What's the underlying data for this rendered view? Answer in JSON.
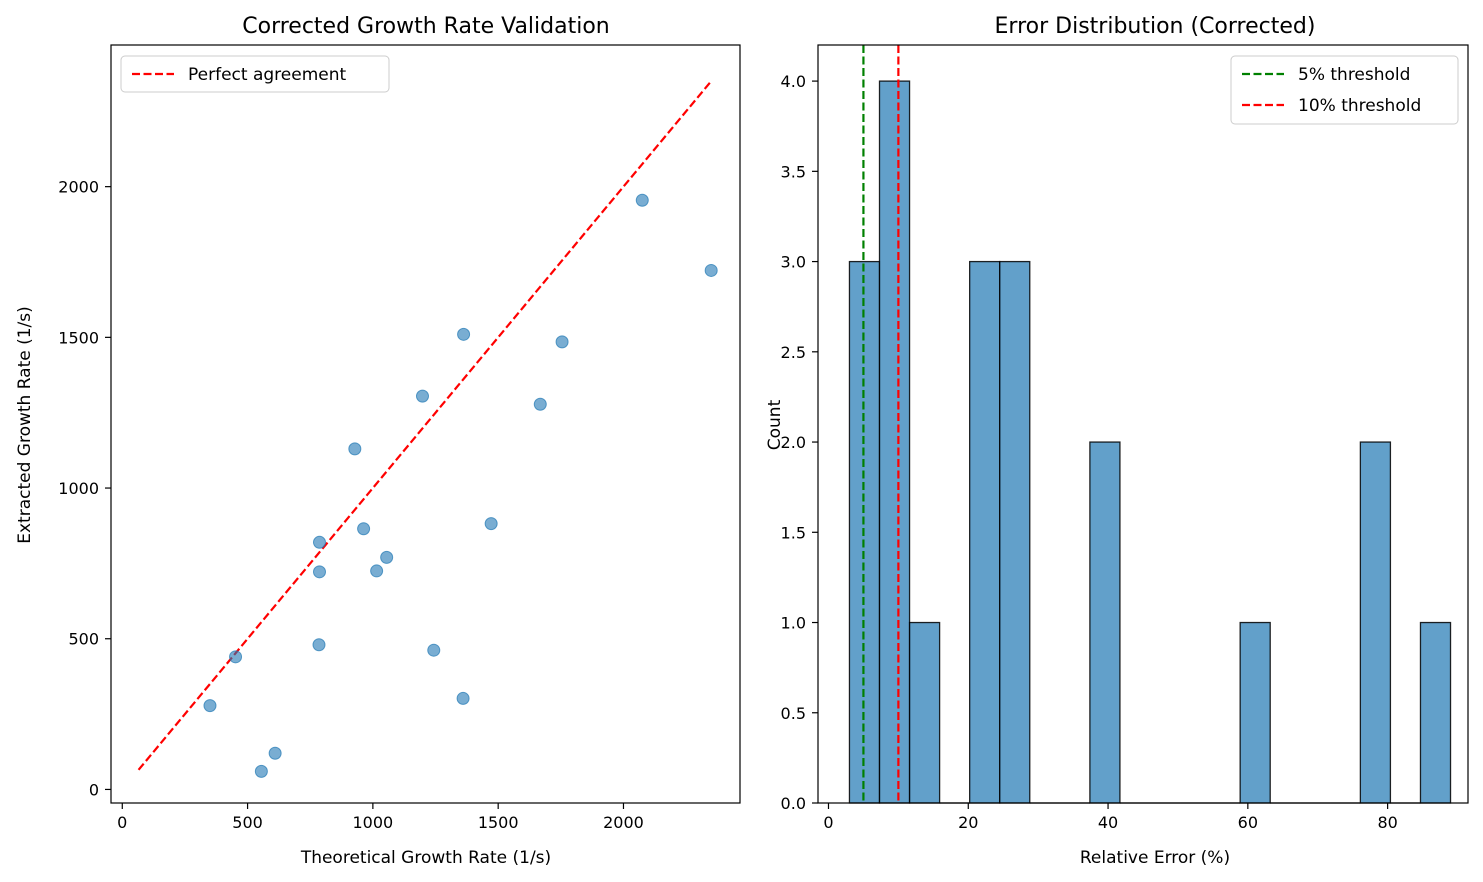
{
  "chart_data": [
    {
      "type": "scatter",
      "title": "Corrected Growth Rate Validation",
      "xlabel": "Theoretical Growth Rate (1/s)",
      "ylabel": "Extracted Growth Rate (1/s)",
      "xlim": [
        -45,
        2465
      ],
      "ylim": [
        -45,
        2470
      ],
      "xticks": [
        0,
        500,
        1000,
        1500,
        2000
      ],
      "yticks": [
        0,
        500,
        1000,
        1500,
        2000
      ],
      "grid": false,
      "legend_position": "top-left",
      "series": [
        {
          "name": "Perfect agreement",
          "kind": "line",
          "style": "dashed",
          "color": "#ff0000",
          "x": [
            65,
            2350
          ],
          "y": [
            65,
            2350
          ]
        },
        {
          "kind": "points",
          "color": "#1f77b4",
          "x": [
            350,
            452,
            555,
            610,
            785,
            787,
            787,
            928,
            963,
            1015,
            1055,
            1198,
            1243,
            1360,
            1362,
            1472,
            1668,
            1755,
            2075,
            2350
          ],
          "y": [
            278,
            440,
            60,
            120,
            480,
            722,
            820,
            1130,
            865,
            725,
            770,
            1305,
            462,
            302,
            1510,
            882,
            1278,
            1485,
            1955,
            1722
          ]
        }
      ]
    },
    {
      "type": "bar",
      "title": "Error Distribution (Corrected)",
      "xlabel": "Relative Error (%)",
      "ylabel": "Count",
      "xlim": [
        -1.5,
        91.5
      ],
      "ylim": [
        0,
        4.2
      ],
      "xticks": [
        0,
        20,
        40,
        60,
        80
      ],
      "yticks": [
        0.0,
        0.5,
        1.0,
        1.5,
        2.0,
        2.5,
        3.0,
        3.5,
        4.0
      ],
      "bin_edges": [
        3.0,
        7.3,
        11.6,
        15.9,
        20.2,
        24.5,
        28.8,
        33.1,
        37.4,
        41.7,
        46.0,
        50.3,
        54.6,
        58.9,
        63.2,
        67.5,
        71.8,
        76.1,
        80.4,
        84.7,
        89.0
      ],
      "counts": [
        3,
        4,
        1,
        0,
        3,
        3,
        0,
        0,
        2,
        0,
        0,
        0,
        0,
        1,
        0,
        0,
        0,
        2,
        0,
        1
      ],
      "bar_color": "#1f77b4",
      "grid": false,
      "legend_position": "top-right",
      "thresholds": [
        {
          "name": "5% threshold",
          "x": 5,
          "color": "#008000"
        },
        {
          "name": "10% threshold",
          "x": 10,
          "color": "#ff0000"
        }
      ]
    }
  ]
}
